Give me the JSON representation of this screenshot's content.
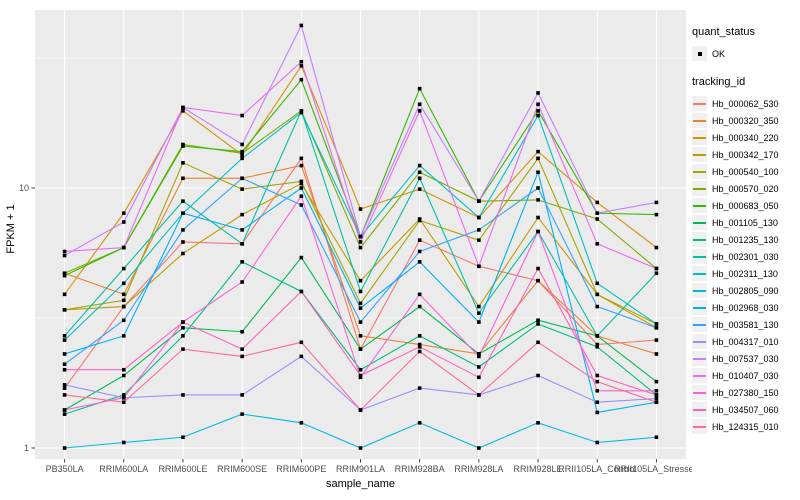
{
  "figure": {
    "background": "#FFFFFF",
    "panel_background": "#EBEBEB",
    "gridline_color": "#FFFFFF",
    "axis_text_color": "#4D4D4D",
    "axis_title_color": "#000000",
    "tick_color": "#333333"
  },
  "legend": {
    "quant_status_title": "quant_status",
    "quant_status_items": [
      {
        "label": "OK",
        "marker": "black-point"
      }
    ],
    "tracking_title": "tracking_id",
    "key_background": "#F0F0F0",
    "position": "right"
  },
  "chart_data": {
    "type": "line",
    "title": "",
    "xlabel": "sample_name",
    "ylabel": "FPKM + 1",
    "y_scale": "log10",
    "y_tick_labels": [
      "1",
      "10"
    ],
    "y_tick_values": [
      1,
      10
    ],
    "y_minor_values": [
      3.162,
      31.623
    ],
    "ylim": [
      0.68,
      48.3
    ],
    "grid": true,
    "legend_position": "right",
    "point_marker": {
      "shape": "square",
      "color": "#000000",
      "size": 3.6,
      "label": "OK"
    },
    "categories": [
      "PB350LA",
      "RRIM600LA",
      "RRIM600LE",
      "RRIM600SE",
      "RRIM600PE",
      "RRIM901LA",
      "RRIM928BA",
      "RRIM928LA",
      "RRIM928LE",
      "RRII105LA_Control",
      "RRII105LA_Stressed"
    ],
    "series": [
      {
        "name": "Hb_000062_530",
        "color": "#F8766D",
        "values": [
          1.7,
          3.5,
          6.2,
          6.1,
          13.0,
          2.4,
          6.3,
          5.0,
          4.4,
          2.5,
          2.6
        ]
      },
      {
        "name": "Hb_000320_350",
        "color": "#EA8331",
        "values": [
          4.7,
          3.9,
          10.9,
          10.9,
          12.2,
          2.7,
          2.5,
          2.3,
          4.4,
          2.7,
          2.3
        ]
      },
      {
        "name": "Hb_000340_220",
        "color": "#D89000",
        "values": [
          3.9,
          8.0,
          19.8,
          13.4,
          29.5,
          8.3,
          9.9,
          7.7,
          13.8,
          8.8,
          5.9
        ]
      },
      {
        "name": "Hb_000342_170",
        "color": "#C09B00",
        "values": [
          3.4,
          3.5,
          5.6,
          7.9,
          10.4,
          4.4,
          7.6,
          3.5,
          7.7,
          3.9,
          2.9
        ]
      },
      {
        "name": "Hb_000540_100",
        "color": "#A3A500",
        "values": [
          3.4,
          3.7,
          12.5,
          9.9,
          10.6,
          3.6,
          7.5,
          6.3,
          13.0,
          3.9,
          3.0
        ]
      },
      {
        "name": "Hb_000570_020",
        "color": "#7CAE00",
        "values": [
          4.7,
          5.9,
          14.7,
          13.6,
          19.8,
          5.9,
          11.5,
          8.9,
          9.0,
          7.6,
          4.9
        ]
      },
      {
        "name": "Hb_000683_050",
        "color": "#39B600",
        "values": [
          4.6,
          5.9,
          14.5,
          13.8,
          26.1,
          6.5,
          24.1,
          8.9,
          19.8,
          8.0,
          7.9
        ]
      },
      {
        "name": "Hb_001105_130",
        "color": "#00BB4E",
        "values": [
          1.4,
          1.9,
          2.9,
          2.8,
          5.4,
          2.4,
          3.5,
          2.3,
          3.1,
          2.7,
          1.8
        ]
      },
      {
        "name": "Hb_001235_130",
        "color": "#00BF7D",
        "values": [
          1.35,
          1.6,
          2.7,
          5.2,
          4.0,
          2.0,
          2.7,
          2.05,
          3.0,
          2.45,
          1.6
        ]
      },
      {
        "name": "Hb_002301_030",
        "color": "#00C1A3",
        "values": [
          2.7,
          4.9,
          8.9,
          6.1,
          19.8,
          4.0,
          10.9,
          3.3,
          6.8,
          2.7,
          4.7
        ]
      },
      {
        "name": "Hb_002311_130",
        "color": "#00BFC4",
        "values": [
          2.6,
          4.3,
          8.0,
          13.0,
          19.5,
          6.5,
          12.2,
          7.7,
          19.0,
          4.3,
          3.0
        ]
      },
      {
        "name": "Hb_002805_090",
        "color": "#00BAE0",
        "values": [
          1.0,
          1.05,
          1.1,
          1.35,
          1.25,
          1.0,
          1.25,
          1.0,
          1.25,
          1.05,
          1.1
        ]
      },
      {
        "name": "Hb_002968_030",
        "color": "#00B0F6",
        "values": [
          2.3,
          2.7,
          8.0,
          6.9,
          10.0,
          3.45,
          5.2,
          3.05,
          11.5,
          1.37,
          1.5
        ]
      },
      {
        "name": "Hb_003581_130",
        "color": "#35A2FF",
        "values": [
          2.1,
          3.1,
          6.9,
          10.9,
          8.6,
          3.05,
          5.7,
          6.9,
          10.0,
          3.5,
          2.9
        ]
      },
      {
        "name": "Hb_004317_010",
        "color": "#9590FF",
        "values": [
          1.75,
          1.56,
          1.6,
          1.6,
          2.25,
          1.4,
          1.7,
          1.6,
          1.9,
          1.5,
          1.55
        ]
      },
      {
        "name": "Hb_007537_030",
        "color": "#C77CFF",
        "values": [
          5.5,
          7.4,
          20.4,
          14.7,
          42.2,
          6.5,
          21.0,
          8.9,
          23.2,
          8.0,
          8.8
        ]
      },
      {
        "name": "Hb_010407_030",
        "color": "#E76BF3",
        "values": [
          5.7,
          5.9,
          20.4,
          19.0,
          30.6,
          6.2,
          19.8,
          5.0,
          21.0,
          6.1,
          4.9
        ]
      },
      {
        "name": "Hb_027380_150",
        "color": "#FA62DB",
        "values": [
          1.4,
          1.56,
          3.05,
          4.35,
          9.3,
          1.87,
          3.9,
          2.25,
          6.8,
          1.66,
          1.66
        ]
      },
      {
        "name": "Hb_034507_060",
        "color": "#FF62BC",
        "values": [
          2.0,
          2.0,
          3.05,
          2.4,
          4.0,
          1.9,
          2.45,
          1.87,
          4.9,
          1.9,
          1.6
        ]
      },
      {
        "name": "Hb_124315_010",
        "color": "#FF6A98",
        "values": [
          1.6,
          1.5,
          2.4,
          2.25,
          2.55,
          1.4,
          2.35,
          1.6,
          2.55,
          1.8,
          1.5
        ]
      }
    ]
  }
}
